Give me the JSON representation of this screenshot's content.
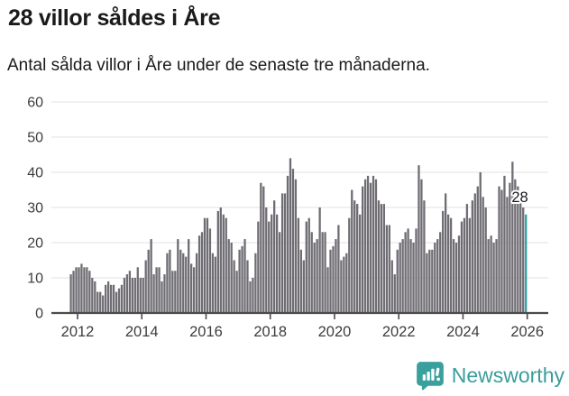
{
  "header": {
    "title": "28 villor såldes i Åre",
    "subtitle": "Antal sålda villor i Åre under de senaste tre månaderna."
  },
  "chart_data": {
    "type": "bar",
    "title": "28 villor såldes i Åre",
    "subtitle": "Antal sålda villor i Åre under de senaste tre månaderna.",
    "x_start_month": "2011-10",
    "x_end_month": "2025-12",
    "x_tick_years": [
      2012,
      2014,
      2016,
      2018,
      2020,
      2022,
      2024,
      2026
    ],
    "y_ticks": [
      0,
      10,
      20,
      30,
      40,
      50,
      60
    ],
    "ylim": [
      0,
      63
    ],
    "grid": true,
    "legend_position": "none",
    "bar_color": "#6F6D73",
    "highlight_color": "#2BA2A2",
    "values": [
      11,
      12,
      13,
      13,
      14,
      13,
      13,
      12,
      10,
      9,
      6,
      6,
      5,
      8,
      9,
      8,
      8,
      6,
      7,
      8,
      10,
      11,
      12,
      10,
      10,
      13,
      10,
      10,
      15,
      18,
      21,
      11,
      13,
      13,
      9,
      11,
      17,
      18,
      12,
      12,
      21,
      18,
      17,
      16,
      21,
      14,
      13,
      17,
      22,
      23,
      27,
      27,
      24,
      17,
      16,
      29,
      30,
      28,
      27,
      21,
      20,
      15,
      12,
      18,
      19,
      21,
      15,
      9,
      10,
      17,
      26,
      37,
      36,
      30,
      26,
      28,
      32,
      28,
      23,
      34,
      34,
      39,
      44,
      41,
      38,
      27,
      18,
      15,
      26,
      27,
      23,
      20,
      21,
      30,
      23,
      23,
      13,
      18,
      19,
      21,
      25,
      15,
      16,
      17,
      27,
      35,
      32,
      31,
      28,
      36,
      38,
      39,
      37,
      39,
      38,
      32,
      31,
      31,
      25,
      25,
      15,
      11,
      18,
      20,
      21,
      23,
      24,
      21,
      20,
      24,
      42,
      38,
      32,
      17,
      18,
      18,
      20,
      21,
      23,
      29,
      34,
      28,
      27,
      21,
      20,
      22,
      26,
      27,
      31,
      27,
      32,
      34,
      36,
      40,
      33,
      30,
      21,
      22,
      20,
      21,
      36,
      35,
      39,
      33,
      37,
      43,
      38,
      36,
      33,
      30,
      28
    ],
    "highlight": {
      "month": "2025-12",
      "value": 28,
      "label": "28"
    }
  },
  "footer": {
    "brand": "Newsworthy",
    "brand_color": "#3A9D9B",
    "logo_icon": "newsworthy-bar-chart-bubble-icon"
  },
  "colors": {
    "background": "#FFFFFF",
    "text": "#1A1A1A",
    "axis_text": "#3D3D3D",
    "gridline": "#E6E6E6",
    "axis_line": "#4A4A4A",
    "annotation_text": "#1A1A1A",
    "annotation_halo": "#FFFFFF"
  }
}
